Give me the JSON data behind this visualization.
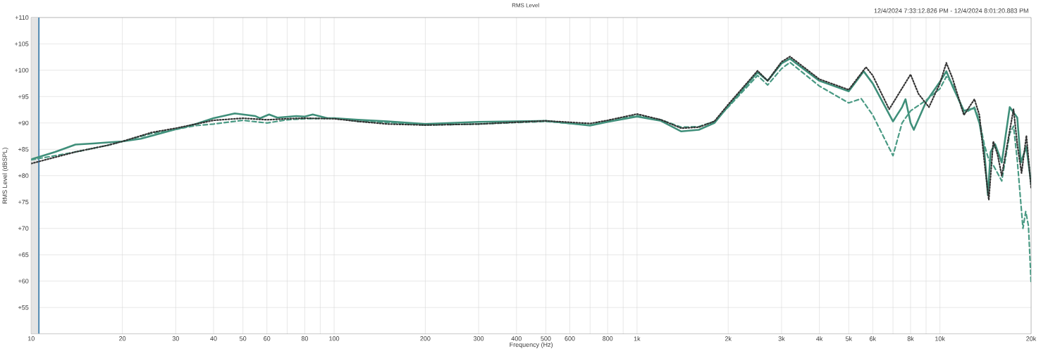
{
  "chart_data": {
    "type": "line",
    "title": "RMS Level",
    "xlabel": "Frequency (Hz)",
    "ylabel": "RMS Level (dBSPL)",
    "annotations": [
      "12/4/2024 7:33:12.826 PM - 12/4/2024 8:01:20.883 PM"
    ],
    "log": "x",
    "grid": true,
    "xlim": [
      10,
      20000
    ],
    "ylim": [
      50,
      110
    ],
    "xticks": [
      10,
      20,
      30,
      40,
      50,
      60,
      {
        "value": 70,
        "label": null
      },
      80,
      {
        "value": 90,
        "label": null
      },
      100,
      200,
      300,
      400,
      500,
      600,
      {
        "value": 700,
        "label": null
      },
      800,
      {
        "value": 900,
        "label": null
      },
      {
        "value": 1000,
        "label": "1k"
      },
      {
        "value": 2000,
        "label": "2k"
      },
      {
        "value": 3000,
        "label": "3k"
      },
      {
        "value": 4000,
        "label": "4k"
      },
      {
        "value": 5000,
        "label": "5k"
      },
      {
        "value": 6000,
        "label": "6k"
      },
      {
        "value": 7000,
        "label": null
      },
      {
        "value": 8000,
        "label": "8k"
      },
      {
        "value": 9000,
        "label": null
      },
      {
        "value": 10000,
        "label": "10k"
      },
      {
        "value": 20000,
        "label": "20k"
      }
    ],
    "yticks": [
      {
        "value": 55,
        "label": "+55"
      },
      {
        "value": 60,
        "label": "+60"
      },
      {
        "value": 65,
        "label": "+65"
      },
      {
        "value": 70,
        "label": "+70"
      },
      {
        "value": 75,
        "label": "+75"
      },
      {
        "value": 80,
        "label": "+80"
      },
      {
        "value": 85,
        "label": "+85"
      },
      {
        "value": 90,
        "label": "+90"
      },
      {
        "value": 95,
        "label": "+95"
      },
      {
        "value": 100,
        "label": "+100"
      },
      {
        "value": 105,
        "label": "+105"
      },
      {
        "value": 110,
        "label": "+110"
      }
    ],
    "bands": [
      {
        "axis": "x",
        "from": 10,
        "to": 10.6,
        "color": "#e4e4e4"
      }
    ],
    "ref_lines": [
      {
        "axis": "x",
        "value": 10.6,
        "color": "#4a86b0"
      }
    ],
    "series": [
      {
        "color": "#3f8f7a",
        "line_style": "solid",
        "x": [
          10,
          12,
          14,
          16,
          20,
          23,
          30,
          35,
          40,
          47,
          55,
          57,
          61,
          65,
          75,
          80,
          85,
          95,
          100,
          120,
          150,
          200,
          300,
          500,
          700,
          800,
          1000,
          1200,
          1400,
          1600,
          1800,
          2000,
          2500,
          2700,
          3000,
          3200,
          4000,
          5000,
          5600,
          6000,
          7000,
          7500,
          7700,
          8000,
          8200,
          9000,
          10000,
          10500,
          11000,
          12000,
          13000,
          13500,
          14000,
          14400,
          14700,
          15200,
          16000,
          17000,
          18000,
          18500,
          19300,
          20000
        ],
        "values": [
          83.1,
          84.5,
          85.9,
          86.1,
          86.5,
          87.0,
          88.8,
          89.8,
          90.9,
          91.8,
          91.3,
          90.9,
          91.6,
          91.0,
          91.3,
          91.2,
          91.6,
          90.9,
          90.9,
          90.6,
          90.3,
          89.8,
          90.2,
          90.4,
          89.5,
          90.2,
          91.2,
          90.4,
          88.4,
          88.7,
          90.0,
          93.2,
          99.6,
          98.0,
          101.3,
          102.2,
          98.0,
          96.0,
          99.8,
          97.5,
          90.3,
          93.0,
          94.5,
          90.0,
          88.7,
          94.0,
          97.8,
          99.8,
          97.0,
          92.3,
          92.8,
          90.0,
          85.0,
          76.3,
          84.5,
          86.0,
          82.5,
          93.0,
          91.0,
          82.5,
          85.5,
          78.5
        ]
      },
      {
        "color": "#4a9a84",
        "line_style": "dashed",
        "x": [
          10,
          12,
          14,
          18,
          20,
          25,
          30,
          35,
          40,
          50,
          60,
          70,
          80,
          100,
          120,
          150,
          200,
          300,
          500,
          700,
          800,
          1000,
          1200,
          1400,
          1600,
          1800,
          2000,
          2500,
          2700,
          3000,
          3200,
          4000,
          5000,
          5500,
          6000,
          7000,
          7500,
          8000,
          9000,
          10000,
          10500,
          11000,
          12000,
          13000,
          13500,
          14000,
          14500,
          15000,
          16000,
          17000,
          17500,
          18000,
          18800,
          19200,
          19600,
          20000
        ],
        "values": [
          83.0,
          83.8,
          84.5,
          85.8,
          86.5,
          88.0,
          88.8,
          89.5,
          89.8,
          90.5,
          90.0,
          90.6,
          90.8,
          90.9,
          90.3,
          90.1,
          89.6,
          89.8,
          90.3,
          89.6,
          90.4,
          91.4,
          90.6,
          89.2,
          89.3,
          90.3,
          93.0,
          99.0,
          97.2,
          100.3,
          101.5,
          97.0,
          93.8,
          94.6,
          91.5,
          83.8,
          90.0,
          92.3,
          94.3,
          96.5,
          98.8,
          97.5,
          91.8,
          93.0,
          90.5,
          86.0,
          83.0,
          82.0,
          79.0,
          88.0,
          89.4,
          83.0,
          70.0,
          73.2,
          70.5,
          59.7
        ]
      },
      {
        "color": "#333333",
        "line_style": "dotted",
        "x": [
          10,
          12,
          14,
          18,
          20,
          25,
          30,
          35,
          40,
          50,
          60,
          70,
          80,
          100,
          120,
          150,
          200,
          300,
          500,
          700,
          800,
          1000,
          1200,
          1400,
          1600,
          1800,
          2000,
          2500,
          2700,
          3000,
          3200,
          4000,
          5000,
          5700,
          6000,
          6800,
          8000,
          8500,
          9200,
          10000,
          10500,
          11000,
          12000,
          13000,
          13500,
          14000,
          14500,
          15000,
          15500,
          16000,
          17500,
          18000,
          18600,
          19300,
          20000
        ],
        "values": [
          82.3,
          83.5,
          84.5,
          85.8,
          86.5,
          88.2,
          89.0,
          89.8,
          90.5,
          90.9,
          90.6,
          90.8,
          90.9,
          90.8,
          90.3,
          89.8,
          89.6,
          89.8,
          90.4,
          89.9,
          90.5,
          91.7,
          90.6,
          89.0,
          89.2,
          90.3,
          93.5,
          99.9,
          98.0,
          101.6,
          102.6,
          98.3,
          96.3,
          100.6,
          99.0,
          92.6,
          99.2,
          95.5,
          93.0,
          97.5,
          101.4,
          98.5,
          91.5,
          94.5,
          91.5,
          83.0,
          75.4,
          86.5,
          84.0,
          80.0,
          92.6,
          86.0,
          80.5,
          87.6,
          77.7
        ]
      }
    ]
  }
}
